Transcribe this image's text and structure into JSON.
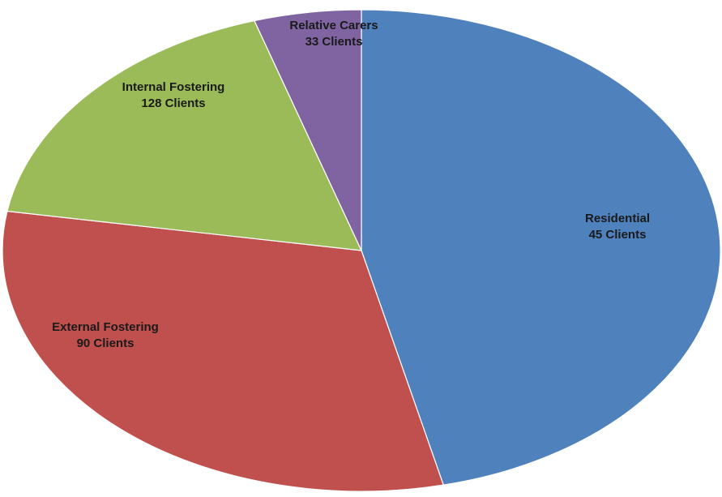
{
  "chart_data": {
    "type": "pie",
    "slices": [
      {
        "label": "Residential",
        "value_label": "45 Clients",
        "share": 0.4633,
        "color": "#4F81BD"
      },
      {
        "label": "External Fostering",
        "value_label": "90 Clients",
        "share": 0.3128,
        "color": "#C0504D"
      },
      {
        "label": "Internal Fostering",
        "value_label": "128 Clients",
        "share": 0.1757,
        "color": "#9BBB59"
      },
      {
        "label": "Relative Carers",
        "value_label": "33 Clients",
        "share": 0.0482,
        "color": "#8064A2"
      }
    ],
    "start_angle_deg": 0,
    "direction": "clockwise",
    "legend": "none"
  }
}
